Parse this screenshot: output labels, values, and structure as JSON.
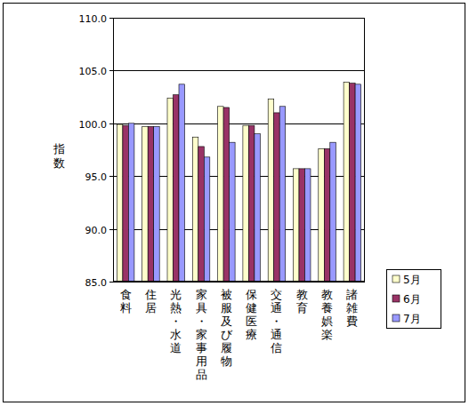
{
  "chart_data": {
    "type": "bar",
    "y_label": "指数",
    "categories": [
      "食料",
      "住居",
      "光熱・水道",
      "家具・家事用品",
      "被服及び履物",
      "保健医療",
      "交通・通信",
      "教育",
      "教養娯楽",
      "諸雑費"
    ],
    "series": [
      {
        "name": "5月",
        "color": "#ffffcc",
        "values": [
          99.9,
          99.7,
          102.4,
          98.7,
          101.6,
          99.8,
          102.3,
          95.7,
          97.6,
          103.9
        ]
      },
      {
        "name": "6月",
        "color": "#993366",
        "values": [
          99.8,
          99.7,
          102.7,
          97.8,
          101.5,
          99.8,
          101.0,
          95.7,
          97.6,
          103.8
        ]
      },
      {
        "name": "7月",
        "color": "#9999ff",
        "values": [
          100.0,
          99.7,
          103.7,
          96.8,
          98.2,
          99.0,
          101.6,
          95.7,
          98.2,
          103.7
        ]
      }
    ],
    "ylim": [
      85,
      110
    ],
    "yticks": [
      {
        "value": 85,
        "label": "85.0"
      },
      {
        "value": 90,
        "label": "90.0"
      },
      {
        "value": 95,
        "label": "95.0"
      },
      {
        "value": 100,
        "label": "100.0"
      },
      {
        "value": 105,
        "label": "105.0"
      },
      {
        "value": 110,
        "label": "110.0"
      }
    ],
    "grid": true,
    "legend": "right"
  }
}
